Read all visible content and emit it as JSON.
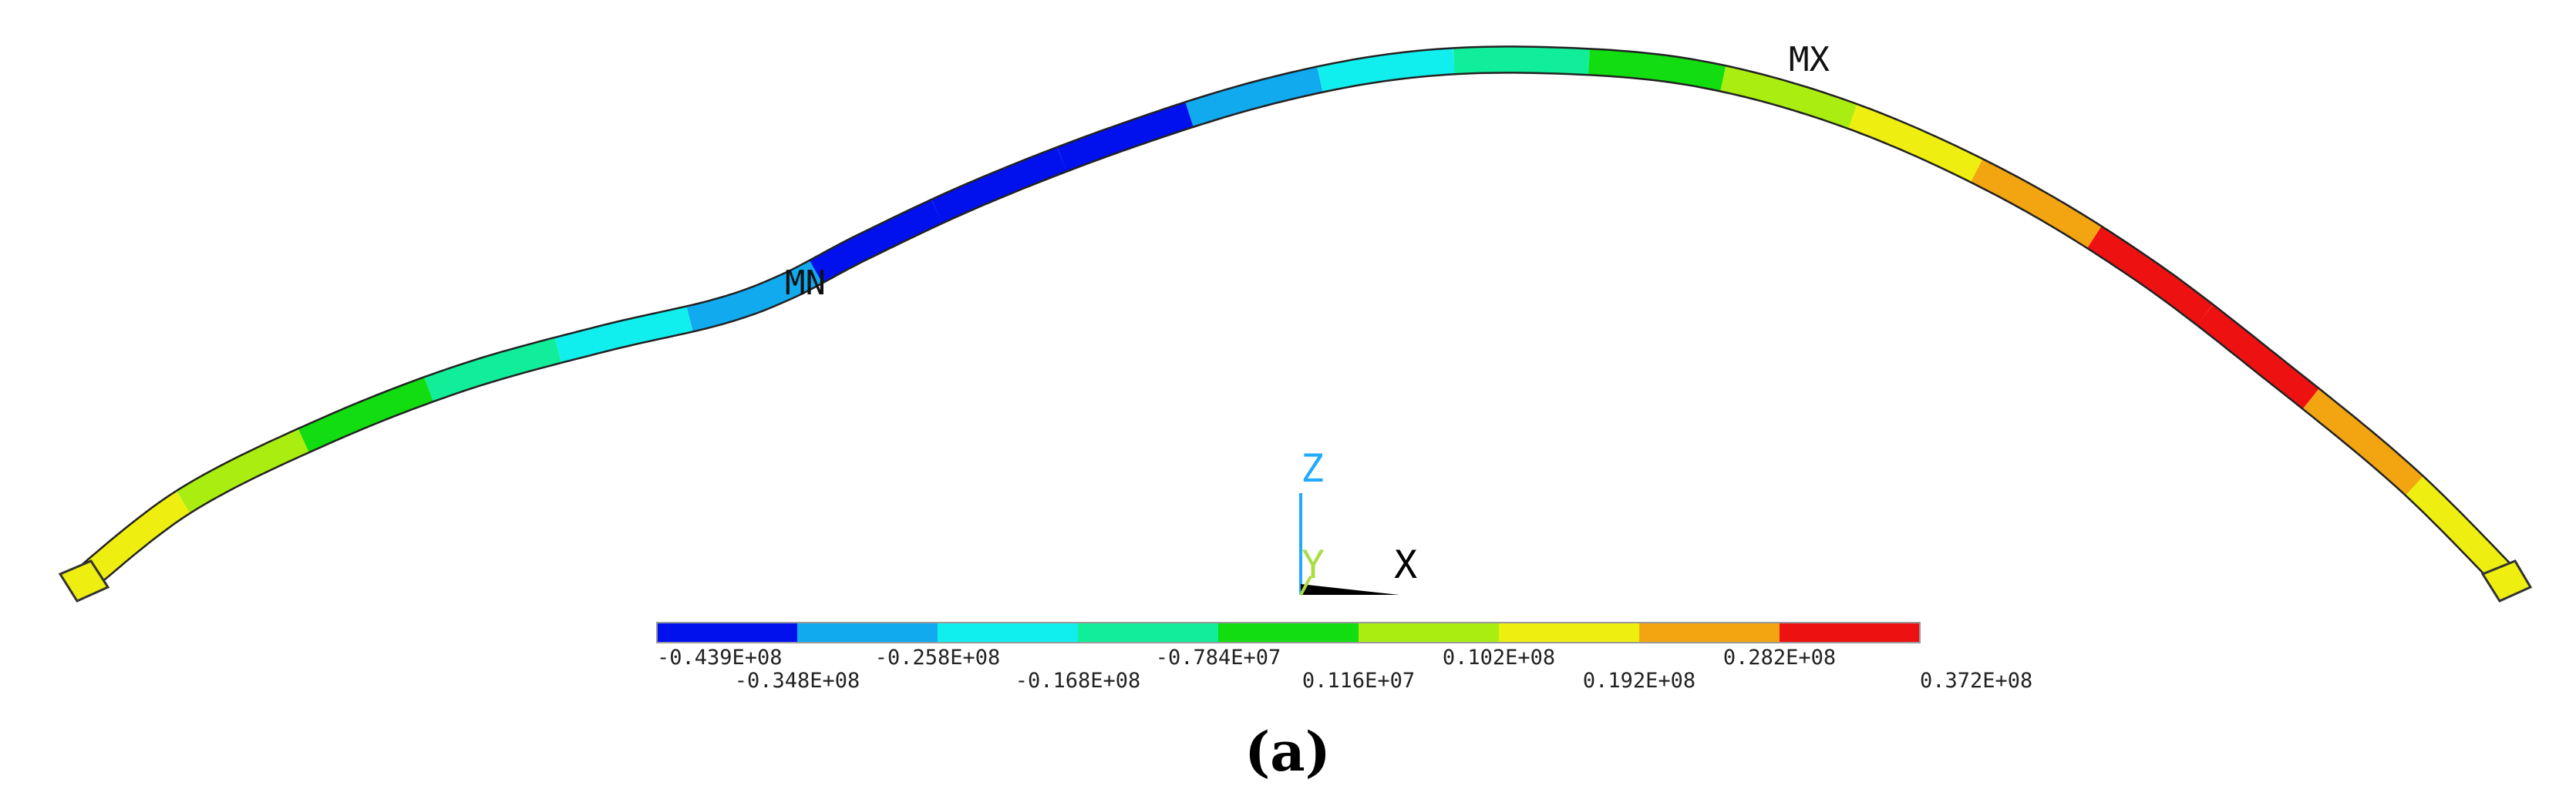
{
  "figure": {
    "caption": "(a)",
    "max_marker": "MX",
    "min_marker": "MN"
  },
  "triad": {
    "z_label": "Z",
    "y_label": "Y",
    "x_label": "X",
    "z_color": "#22aaff",
    "y_color": "#aadd44",
    "x_color": "#000000"
  },
  "legend": {
    "bands": [
      {
        "color": "#0011ee"
      },
      {
        "color": "#11aaee"
      },
      {
        "color": "#11eeee"
      },
      {
        "color": "#11ee99"
      },
      {
        "color": "#11dd11"
      },
      {
        "color": "#aaee11"
      },
      {
        "color": "#eeee11"
      },
      {
        "color": "#f2a510"
      },
      {
        "color": "#ee1111"
      }
    ],
    "ticks": [
      {
        "label": "-0.439E+08",
        "value": -43900000
      },
      {
        "label": "-0.348E+08",
        "value": -34800000
      },
      {
        "label": "-0.258E+08",
        "value": -25800000
      },
      {
        "label": "-0.168E+08",
        "value": -16800000
      },
      {
        "label": "-0.784E+07",
        "value": -7840000
      },
      {
        "label": "0.116E+07",
        "value": 1160000
      },
      {
        "label": "0.102E+08",
        "value": 10200000
      },
      {
        "label": "0.192E+08",
        "value": 19200000
      },
      {
        "label": "0.282E+08",
        "value": 28200000
      },
      {
        "label": "0.372E+08",
        "value": 37200000
      }
    ]
  },
  "beam": {
    "segments": [
      {
        "band": 6
      },
      {
        "band": 5
      },
      {
        "band": 4
      },
      {
        "band": 3
      },
      {
        "band": 2
      },
      {
        "band": 1
      },
      {
        "band": 0
      },
      {
        "band": 0
      },
      {
        "band": 0
      },
      {
        "band": 1
      },
      {
        "band": 2
      },
      {
        "band": 3
      },
      {
        "band": 4
      },
      {
        "band": 5
      },
      {
        "band": 6
      },
      {
        "band": 7
      },
      {
        "band": 8
      },
      {
        "band": 8
      },
      {
        "band": 7
      },
      {
        "band": 6
      }
    ]
  }
}
